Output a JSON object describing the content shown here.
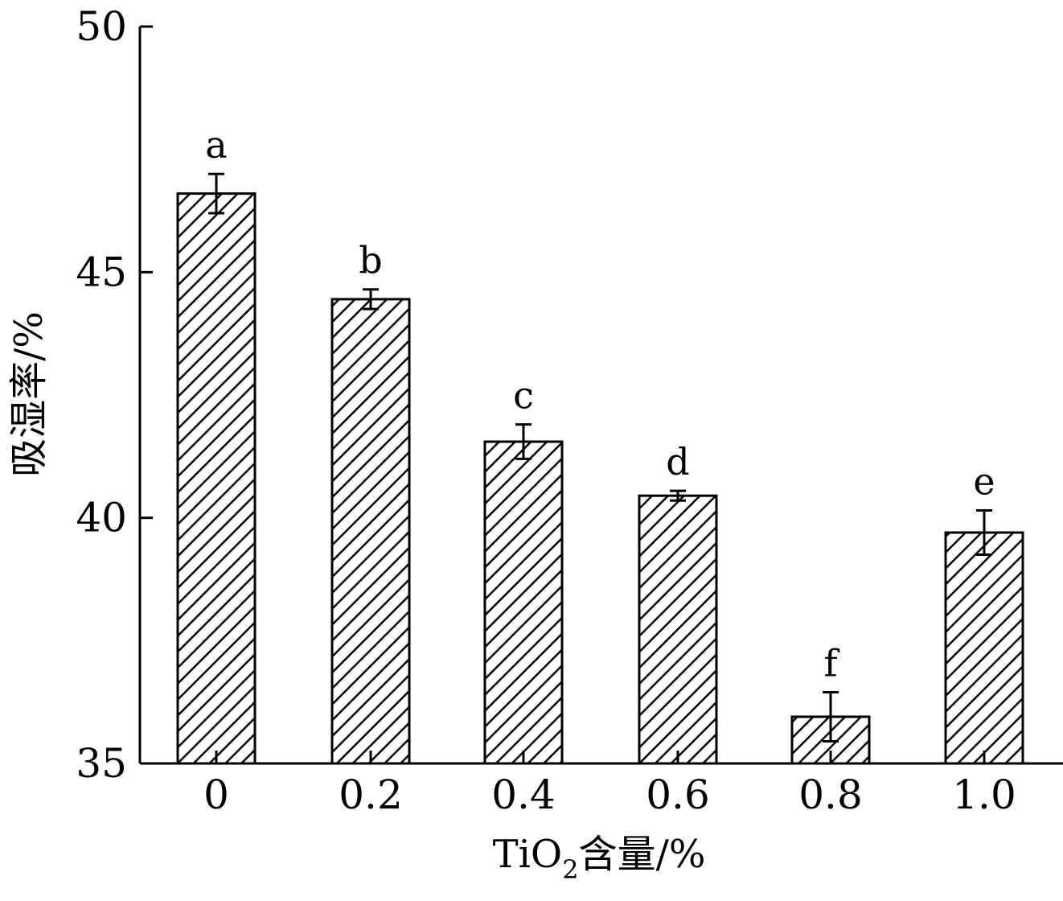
{
  "chart_data": {
    "type": "bar",
    "categories": [
      "0",
      "0.2",
      "0.4",
      "0.6",
      "0.8",
      "1.0"
    ],
    "values": [
      46.6,
      44.45,
      41.55,
      40.45,
      35.95,
      39.7
    ],
    "errors": [
      0.4,
      0.2,
      0.35,
      0.1,
      0.5,
      0.45
    ],
    "significance_labels": [
      "a",
      "b",
      "c",
      "d",
      "f",
      "e"
    ],
    "xlabel": {
      "main": "TiO",
      "subscript": "2",
      "suffix": "含量/%"
    },
    "ylabel": "吸湿率/%",
    "ylim": [
      35,
      50
    ],
    "yticks": [
      "35",
      "40",
      "45",
      "50"
    ],
    "bar_fill": "diagonal-hatch",
    "grid": false,
    "colors": {
      "bar_stroke": "#000000",
      "hatch": "#000000",
      "background": "#ffffff"
    }
  }
}
